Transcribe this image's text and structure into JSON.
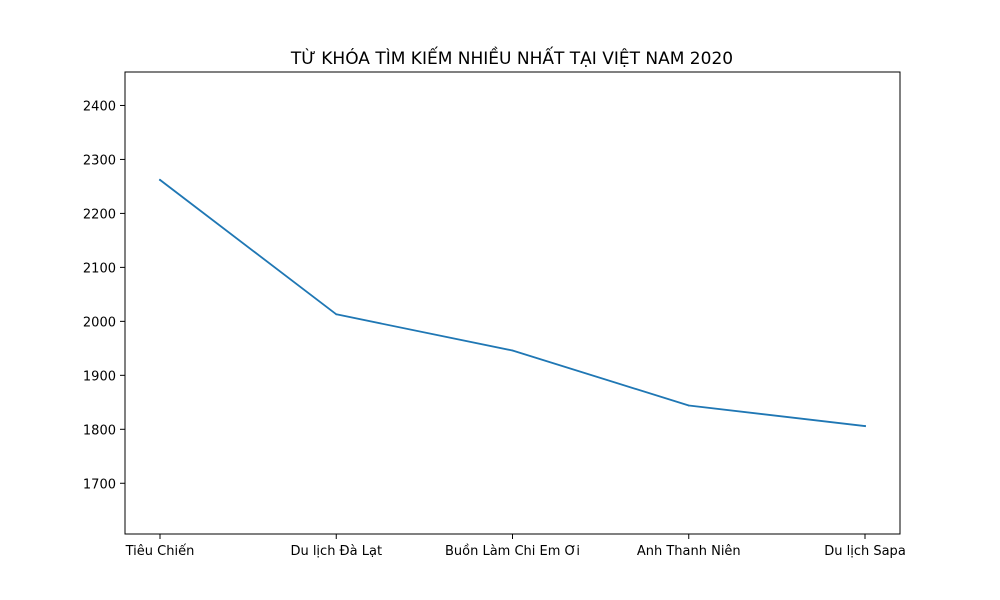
{
  "chart_data": {
    "type": "line",
    "title": "TỪ KHÓA TÌM KIẾM NHIỀU NHẤT TẠI VIỆT NAM 2020",
    "xlabel": "",
    "ylabel": "",
    "categories": [
      "Tiêu Chiến",
      "Du lịch Đà Lạt",
      "Buồn Làm Chi Em Ơi",
      "Anh Thanh Niên",
      "Du lịch Sapa"
    ],
    "series": [
      {
        "values": [
          2262,
          2013,
          1946,
          1844,
          1806
        ],
        "color": "#1f77b4"
      }
    ],
    "ylim": [
      1606,
      2462
    ],
    "yticks": [
      1700,
      1800,
      1900,
      2000,
      2100,
      2200,
      2300,
      2400
    ],
    "grid": false,
    "legend": false
  }
}
